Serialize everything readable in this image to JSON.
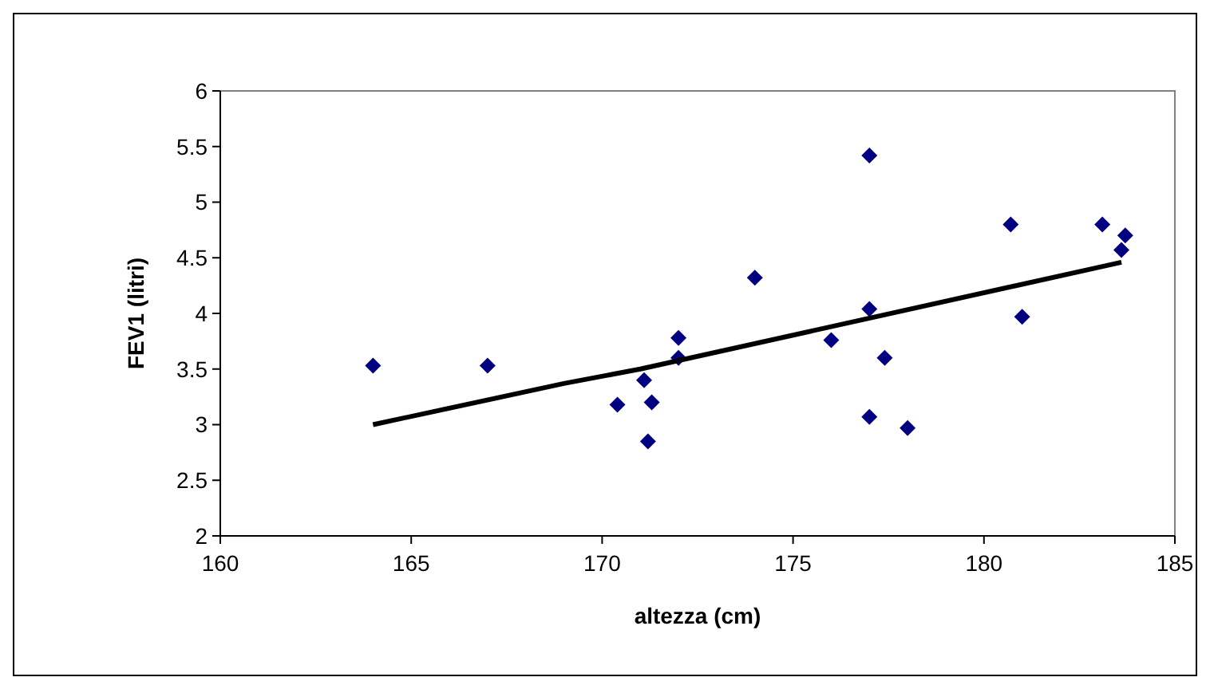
{
  "chart_data": {
    "type": "scatter",
    "xlabel": "altezza (cm)",
    "ylabel": "FEV1 (litri)",
    "xlim": [
      160,
      185
    ],
    "xticks": [
      160,
      165,
      170,
      175,
      180,
      185
    ],
    "ylim": [
      2,
      6
    ],
    "yticks": [
      2,
      2.5,
      3,
      3.5,
      4,
      4.5,
      5,
      5.5,
      6
    ],
    "grid": false,
    "series": [
      {
        "marker": "diamond",
        "color": "#000080",
        "x": [
          164,
          167,
          170.4,
          171.1,
          171.2,
          171.3,
          172,
          172,
          174,
          176,
          177,
          177,
          177,
          177.4,
          178,
          180.7,
          181,
          183.1,
          183.6,
          183.7
        ],
        "values": [
          3.53,
          3.53,
          3.18,
          3.4,
          2.85,
          3.2,
          3.78,
          3.6,
          4.32,
          3.76,
          5.42,
          4.04,
          3.07,
          3.6,
          2.97,
          4.8,
          3.97,
          4.8,
          4.57,
          4.7
        ]
      },
      {
        "type": "line",
        "color": "#000000",
        "x": [
          164,
          169,
          171,
          183.6
        ],
        "values": [
          3.0,
          3.37,
          3.5,
          4.46
        ]
      }
    ]
  }
}
